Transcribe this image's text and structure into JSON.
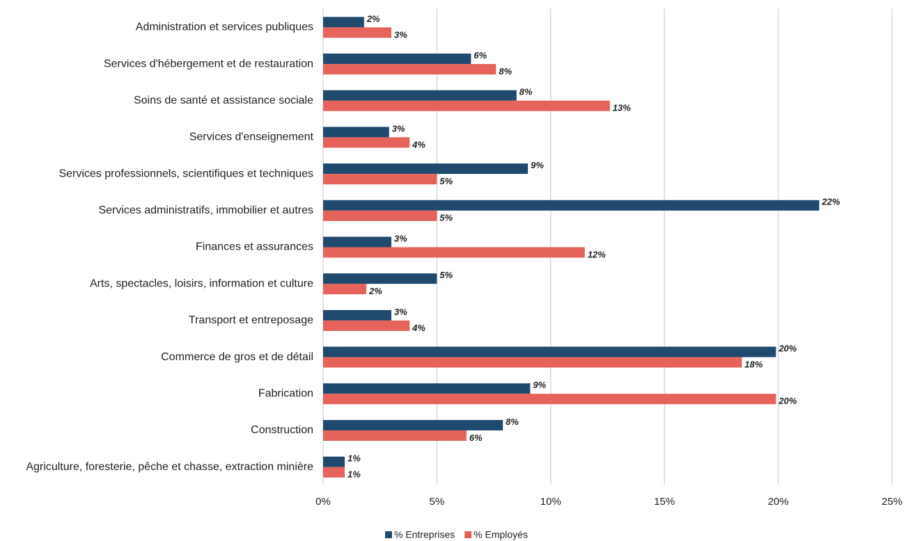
{
  "chart_data": {
    "type": "hbar",
    "categories": [
      "Administration et services publiques",
      "Services d'hébergement et de restauration",
      "Soins de santé et assistance sociale",
      "Services d'enseignement",
      "Services professionnels, scientifiques et techniques",
      "Services administratifs, immobilier et autres",
      "Finances et assurances",
      "Arts, spectacles, loisirs, information et culture",
      "Transport et entreposage",
      "Commerce de gros et de détail",
      "Fabrication",
      "Construction",
      "Agriculture, foresterie, pêche et chasse, extraction minière"
    ],
    "series": [
      {
        "name": "% Entreprises",
        "color": "#1f4a6e",
        "values": [
          1.8,
          6.5,
          8.5,
          2.9,
          9.0,
          21.8,
          3.0,
          5.0,
          3.0,
          19.9,
          9.1,
          7.9,
          0.95
        ],
        "value_labels": [
          "2%",
          "6%",
          "8%",
          "3%",
          "9%",
          "22%",
          "3%",
          "5%",
          "3%",
          "20%",
          "9%",
          "8%",
          "1%"
        ]
      },
      {
        "name": "% Employés",
        "color": "#e5635a",
        "values": [
          3.0,
          7.6,
          12.6,
          3.8,
          5.0,
          5.0,
          11.5,
          1.9,
          3.8,
          18.4,
          19.9,
          6.3,
          0.95
        ],
        "value_labels": [
          "3%",
          "8%",
          "13%",
          "4%",
          "5%",
          "5%",
          "12%",
          "2%",
          "4%",
          "18%",
          "20%",
          "6%",
          "1%"
        ]
      }
    ],
    "xlim": [
      0,
      25
    ],
    "xticks": [
      {
        "value": 0,
        "label": "0%"
      },
      {
        "value": 5,
        "label": "5%"
      },
      {
        "value": 10,
        "label": "10%"
      },
      {
        "value": 15,
        "label": "15%"
      },
      {
        "value": 20,
        "label": "20%"
      },
      {
        "value": 25,
        "label": "25%"
      }
    ],
    "grid": true,
    "legend": "bottom"
  }
}
